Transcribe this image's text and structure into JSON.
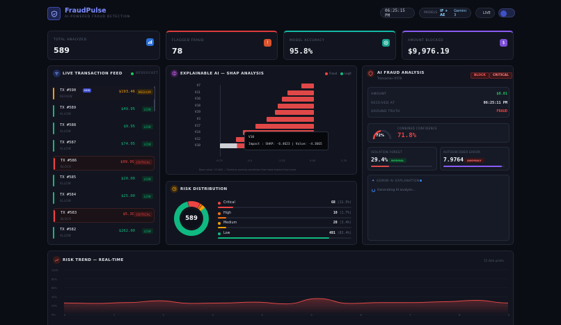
{
  "app": {
    "name": "FraudPulse",
    "tagline": "AI-POWERED FRAUD DETECTION",
    "clock": "06:25:15 PM",
    "model_label": "MODELS",
    "model_value": "IF + AE",
    "model_name": "Gemini 3",
    "live_label": "LIVE"
  },
  "stats": [
    {
      "label": "TOTAL ANALYZED",
      "value": "589",
      "color": "#3b82f6",
      "icon": "bar-chart-icon"
    },
    {
      "label": "FLAGGED FRAUD",
      "value": "78",
      "color": "#ef4444",
      "icon": "alert-icon"
    },
    {
      "label": "MODEL ACCURACY",
      "value": "95.8%",
      "color": "#14b8a6",
      "icon": "target-icon"
    },
    {
      "label": "AMOUNT BLOCKED",
      "value": "$9,976.19",
      "color": "#8b5cf6",
      "icon": "dollar-icon"
    }
  ],
  "feed": {
    "title": "LIVE TRANSACTION FEED",
    "status": "WEBSOCKET",
    "items": [
      {
        "tx": "TX #590",
        "new": "NEW",
        "status": "REVIEW",
        "amount": "$193.46",
        "level": "MEDIUM",
        "color": "#f59e0b"
      },
      {
        "tx": "TX #589",
        "status": "ALLOW",
        "amount": "$49.95",
        "level": "LOW",
        "color": "#10b981"
      },
      {
        "tx": "TX #588",
        "status": "ALLOW",
        "amount": "$9.95",
        "level": "LOW",
        "color": "#10b981"
      },
      {
        "tx": "TX #587",
        "status": "ALLOW",
        "amount": "$74.95",
        "level": "LOW",
        "color": "#10b981"
      },
      {
        "tx": "TX #586",
        "status": "BLOCK",
        "amount": "$99.99",
        "level": "CRITICAL",
        "color": "#ef4444"
      },
      {
        "tx": "TX #585",
        "status": "ALLOW",
        "amount": "$20.00",
        "level": "LOW",
        "color": "#10b981"
      },
      {
        "tx": "TX #584",
        "status": "ALLOW",
        "amount": "$25.00",
        "level": "LOW",
        "color": "#10b981"
      },
      {
        "tx": "TX #583",
        "status": "BLOCK",
        "amount": "$5.30",
        "level": "CRITICAL",
        "color": "#ef4444"
      },
      {
        "tx": "TX #582",
        "status": "ALLOW",
        "amount": "$262.00",
        "level": "LOW",
        "color": "#10b981"
      }
    ]
  },
  "shap": {
    "title": "EXPLAINABLE AI — SHAP ANALYSIS",
    "legend": [
      "Fraud",
      "Legit"
    ],
    "features": [
      "V7",
      "V11",
      "V16",
      "V18",
      "V19",
      "V3",
      "V17",
      "V14",
      "V12",
      "V10"
    ],
    "ticks": [
      "-6.75",
      "-4.5",
      "-2.25",
      "0.00",
      "2.25"
    ],
    "tooltip_feature": "V10",
    "tooltip_text": "Impact : SHAP: -6.4623 | Value: -4.3665",
    "footer": "Base value: 22.068 — Features pushing prediction from base toward final score"
  },
  "chart_data": {
    "type": "bar",
    "categories": [
      "V7",
      "V11",
      "V16",
      "V18",
      "V19",
      "V3",
      "V17",
      "V14",
      "V12",
      "V10"
    ],
    "values": [
      -0.9,
      -1.9,
      -2.3,
      -2.6,
      -2.8,
      -3.4,
      -4.2,
      -5.1,
      -5.6,
      -6.4623
    ],
    "xlim": [
      -6.75,
      2.25
    ]
  },
  "risk": {
    "title": "RISK DISTRIBUTION",
    "total": "589",
    "rows": [
      {
        "name": "Critical",
        "count": "68",
        "pct": "(11.5%)",
        "frac": 0.115,
        "color": "#ef4444"
      },
      {
        "name": "High",
        "count": "10",
        "pct": "(1.7%)",
        "frac": 0.017,
        "color": "#f97316"
      },
      {
        "name": "Medium",
        "count": "20",
        "pct": "(3.4%)",
        "frac": 0.034,
        "color": "#f59e0b"
      },
      {
        "name": "Low",
        "count": "491",
        "pct": "(83.4%)",
        "frac": 0.834,
        "color": "#10b981"
      }
    ]
  },
  "detail": {
    "title": "AI FRAUD ANALYSIS",
    "subtitle": "Transaction #578",
    "action": "BLOCK",
    "level": "CRITICAL",
    "rows": [
      {
        "k": "AMOUNT",
        "v": "$0.01",
        "color": "#22c55e"
      },
      {
        "k": "RECEIVED AT",
        "v": "06:25:11 PM",
        "color": "#e6e8ef"
      },
      {
        "k": "GROUND TRUTH",
        "v": "FRAUD",
        "color": "#ef4444"
      }
    ],
    "confidence_pct": "72%",
    "confidence_frac": 0.72,
    "confidence_label": "COMBINED CONFIDENCE",
    "confidence_value": "71.8%",
    "iso_label": "ISOLATION FOREST",
    "iso_value": "29.4%",
    "iso_badge": "NORMAL",
    "iso_frac": 0.294,
    "ae_label": "AUTOENCODER ERROR",
    "ae_value": "7.9764",
    "ae_badge": "ANOMALY",
    "ae_frac": 0.95,
    "expl_title": "GEMINI AI EXPLANATION",
    "expl_text": "Generating AI analysis..."
  },
  "trend": {
    "title": "RISK TREND — REAL-TIME",
    "right": "15 data points",
    "yticks": [
      "100%",
      "80%",
      "60%",
      "40%",
      "20%",
      "0%"
    ],
    "xticks": [
      "0",
      "1",
      "2",
      "3",
      "4",
      "5",
      "6",
      "7",
      "8",
      "9"
    ]
  },
  "trend_data": {
    "values": [
      0.26,
      0.25,
      0.27,
      0.31,
      0.25,
      0.26,
      0.28,
      0.24,
      0.36,
      0.25,
      0.27,
      0.27,
      0.29,
      0.32,
      0.26
    ]
  }
}
